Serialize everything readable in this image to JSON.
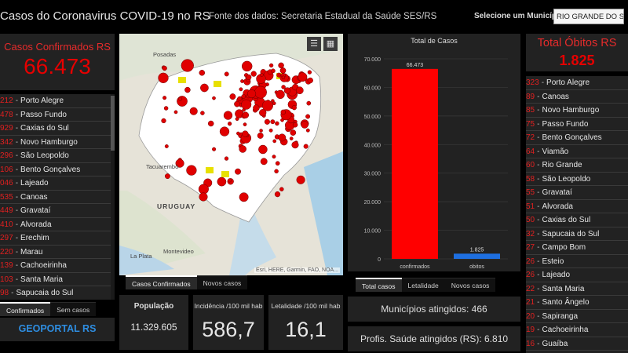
{
  "header": {
    "title": "Casos do Coronavirus COVID-19 no RS",
    "source": "Fonte dos dados: Secretaria Estadual da Saúde SES/RS",
    "select_label": "Selecione um Município",
    "select_value": "RIO GRANDE DO SUL"
  },
  "cases": {
    "title": "Casos Confirmados RS",
    "value": "66.473",
    "list": [
      {
        "num": "212",
        "name": "Porto Alegre"
      },
      {
        "num": "478",
        "name": "Passo Fundo"
      },
      {
        "num": "929",
        "name": "Caxias do Sul"
      },
      {
        "num": "342",
        "name": "Novo Hamburgo"
      },
      {
        "num": "296",
        "name": "São Leopoldo"
      },
      {
        "num": "106",
        "name": "Bento Gonçalves"
      },
      {
        "num": "046",
        "name": "Lajeado"
      },
      {
        "num": "535",
        "name": "Canoas"
      },
      {
        "num": "449",
        "name": "Gravataí"
      },
      {
        "num": "410",
        "name": "Alvorada"
      },
      {
        "num": "297",
        "name": "Erechim"
      },
      {
        "num": "220",
        "name": "Marau"
      },
      {
        "num": "139",
        "name": "Cachoeirinha"
      },
      {
        "num": "103",
        "name": "Santa Maria"
      },
      {
        "num": "98",
        "name": "Sapucaia do Sul"
      }
    ],
    "tabs": [
      "Confirmados",
      "Sem casos"
    ]
  },
  "geoportal": "GEOPORTAL RS",
  "map": {
    "labels": [
      "Posadas",
      "Tacuarembó",
      "URUGUAY",
      "Montevideo",
      "La Plata"
    ],
    "attribution": "Esri, HERE, Garmin, FAO, NOA...",
    "tabs": [
      "Casos Confirmados",
      "Novos casos"
    ]
  },
  "stats": {
    "population": {
      "label": "População",
      "value": "11.329.605"
    },
    "incidence": {
      "label": "Incidência /100 mil hab",
      "value": "586,7"
    },
    "lethality": {
      "label": "Letalidade /100 mil hab",
      "value": "16,1"
    }
  },
  "chart_data": {
    "type": "bar",
    "title": "Total de Casos",
    "categories": [
      "confirmados",
      "obitos"
    ],
    "values": [
      66473,
      1825
    ],
    "value_labels": [
      "66.473",
      "1.825"
    ],
    "ylim": [
      0,
      70000
    ],
    "yticks": [
      "0",
      "10.000",
      "20.000",
      "30.000",
      "40.000",
      "50.000",
      "60.000",
      "70.000"
    ],
    "colors": [
      "#ff0000",
      "#1e6fe0"
    ],
    "grid": true
  },
  "chart_tabs": [
    "Total casos",
    "Letalidade",
    "Novos casos"
  ],
  "municipios": "Municípios atingidos: 466",
  "profis": "Profis. Saúde atingidos (RS): 6.810",
  "deaths": {
    "title": "Total Óbitos RS",
    "value": "1.825",
    "list": [
      {
        "num": "323",
        "name": "Porto Alegre"
      },
      {
        "num": "89",
        "name": "Canoas"
      },
      {
        "num": "85",
        "name": "Novo Hamburgo"
      },
      {
        "num": "75",
        "name": "Passo Fundo"
      },
      {
        "num": "72",
        "name": "Bento Gonçalves"
      },
      {
        "num": "64",
        "name": "Viamão"
      },
      {
        "num": "60",
        "name": "Rio Grande"
      },
      {
        "num": "58",
        "name": "São Leopoldo"
      },
      {
        "num": "55",
        "name": "Gravataí"
      },
      {
        "num": "51",
        "name": "Alvorada"
      },
      {
        "num": "50",
        "name": "Caxias do Sul"
      },
      {
        "num": "32",
        "name": "Sapucaia do Sul"
      },
      {
        "num": "27",
        "name": "Campo Bom"
      },
      {
        "num": "26",
        "name": "Esteio"
      },
      {
        "num": "26",
        "name": "Lajeado"
      },
      {
        "num": "22",
        "name": "Santa Maria"
      },
      {
        "num": "21",
        "name": "Santo Ângelo"
      },
      {
        "num": "20",
        "name": "Sapiranga"
      },
      {
        "num": "19",
        "name": "Cachoeirinha"
      },
      {
        "num": "16",
        "name": "Guaíba"
      }
    ]
  }
}
